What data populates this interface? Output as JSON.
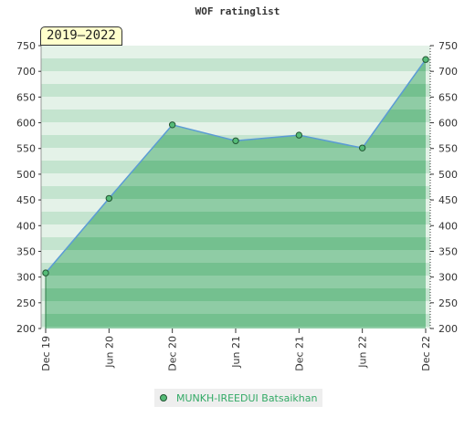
{
  "chart_data": {
    "type": "area",
    "title": "WOF ratinglist",
    "range_label": "2019–2022",
    "x_ticks": [
      "Dec 19",
      "Jun 20",
      "Dec 20",
      "Jun 21",
      "Dec 21",
      "Jun 22",
      "Dec 22"
    ],
    "ylim": [
      200,
      750
    ],
    "y_ticks": [
      200,
      250,
      300,
      350,
      400,
      450,
      500,
      550,
      600,
      650,
      700,
      750
    ],
    "grid": false,
    "legend_position": "bottom",
    "series": [
      {
        "name": "MUNKH-IREEDUI Batsaikhan",
        "x": [
          "Dec 19",
          "Jun 20",
          "Dec 20",
          "Jun 21",
          "Dec 21",
          "Jun 22",
          "Dec 22"
        ],
        "values": [
          308,
          453,
          596,
          565,
          576,
          551,
          723
        ]
      }
    ],
    "colors": {
      "fill": "#7cc496",
      "line": "#5b9bd5",
      "marker": "#55bb77",
      "marker_edge": "#225533",
      "band_light": "#e4f2e8",
      "band_mid": "#c4e4cf",
      "legend_text": "#33aa66"
    }
  }
}
